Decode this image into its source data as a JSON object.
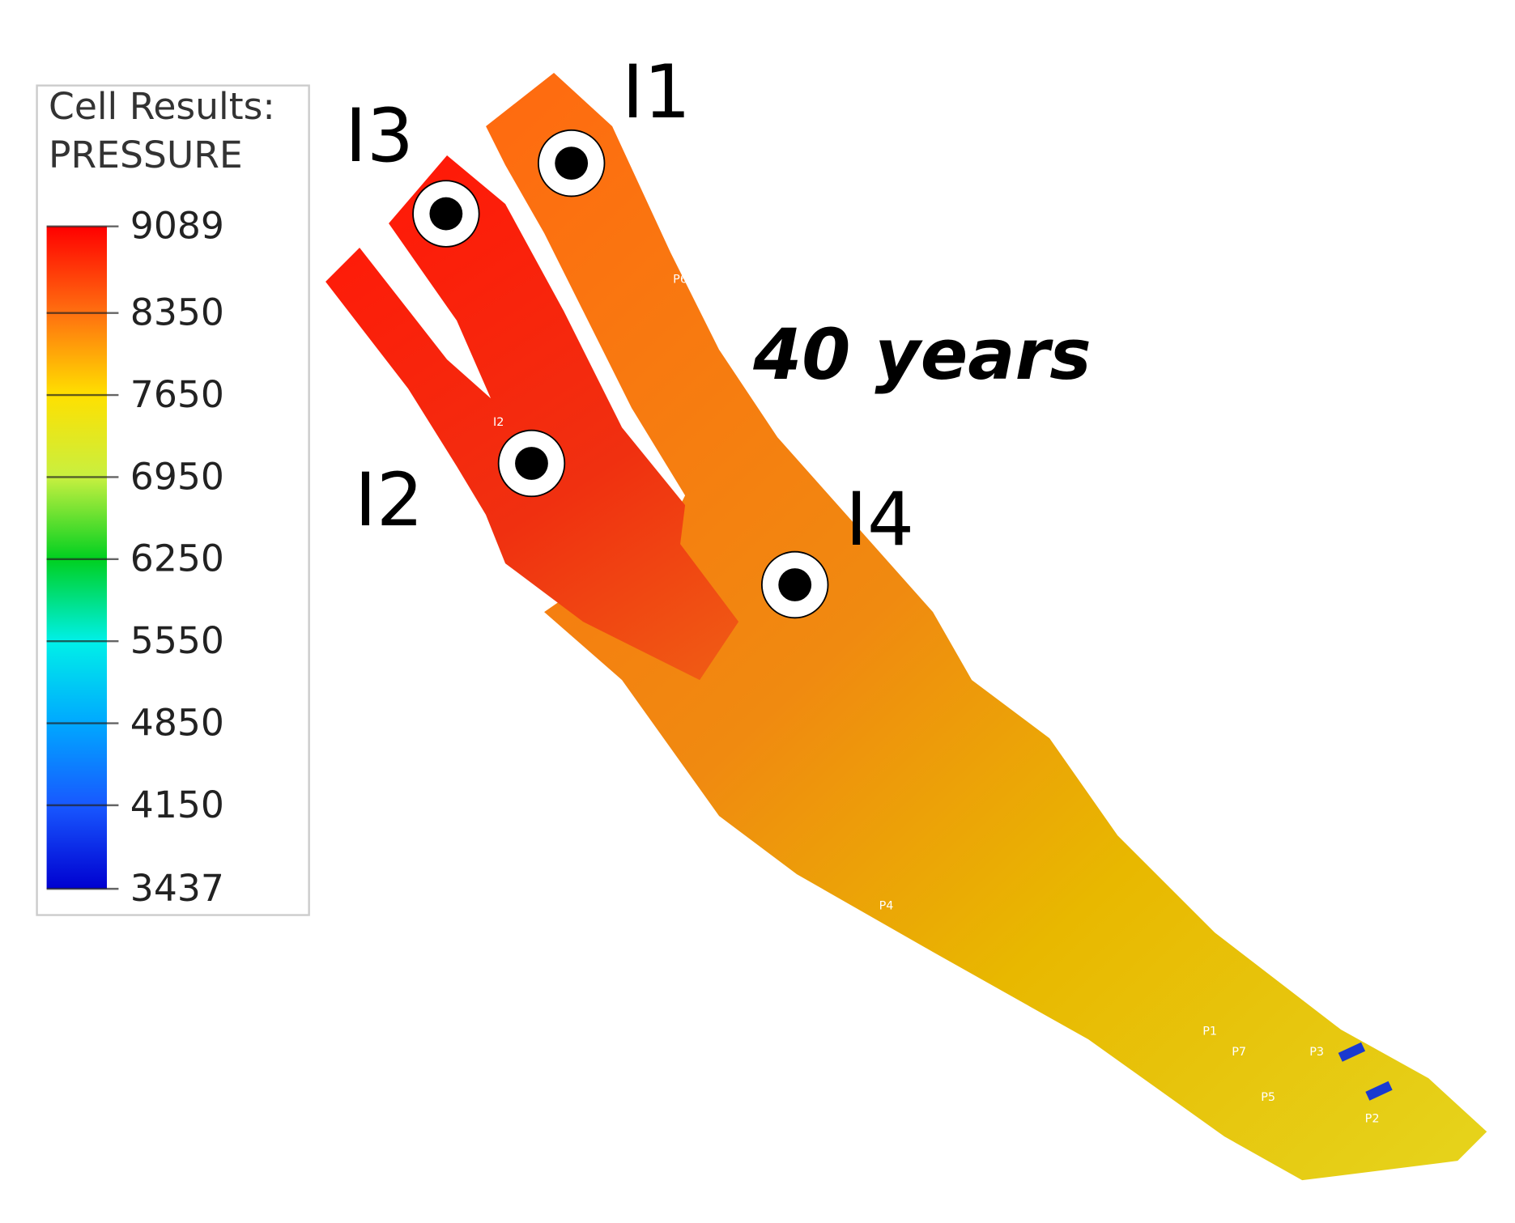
{
  "legend": {
    "title": "Cell Results:",
    "variable": "PRESSURE",
    "ticks": [
      9089,
      8350,
      7650,
      6950,
      6250,
      5550,
      4850,
      4150,
      3437
    ],
    "colors": [
      "#ff0000",
      "#ff7010",
      "#ffe000",
      "#c8f040",
      "#00d020",
      "#00f0e8",
      "#00a8ff",
      "#1858ff",
      "#0000d0"
    ]
  },
  "annotations": {
    "time": "40 years",
    "injectors": [
      "I1",
      "I3",
      "I2",
      "I4"
    ]
  },
  "well_labels": [
    "P6",
    "I2",
    "P4",
    "P1",
    "P7",
    "P3",
    "P5",
    "P2"
  ]
}
